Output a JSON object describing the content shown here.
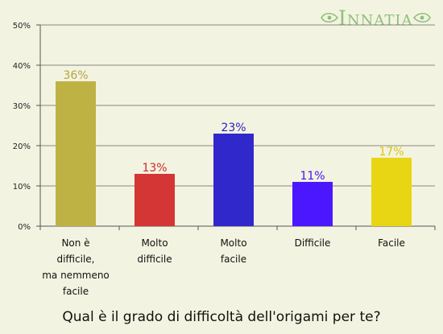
{
  "logo": {
    "text": "Innatia"
  },
  "chart_data": {
    "type": "bar",
    "title": "Qual è il grado di difficoltà dell'origami per te?",
    "xlabel": "",
    "ylabel": "",
    "ylim": [
      0,
      50
    ],
    "yticks": [
      "0%",
      "10%",
      "20%",
      "30%",
      "40%",
      "50%"
    ],
    "grid": true,
    "categories": [
      [
        "Non è",
        "difficile,",
        "ma nemmeno",
        "facile"
      ],
      [
        "Molto",
        "difficile"
      ],
      [
        "Molto",
        "facile"
      ],
      [
        "Difficile"
      ],
      [
        "Facile"
      ]
    ],
    "values": [
      36,
      13,
      23,
      11,
      17
    ],
    "value_labels": [
      "36%",
      "13%",
      "23%",
      "11%",
      "17%"
    ],
    "bar_colors": [
      "#bfb245",
      "#d43535",
      "#3128cc",
      "#4b17ff",
      "#e8d514"
    ],
    "label_colors": [
      "#b3a53f",
      "#cc2a2a",
      "#2a22c4",
      "#4414f5",
      "#d8c80e"
    ]
  }
}
